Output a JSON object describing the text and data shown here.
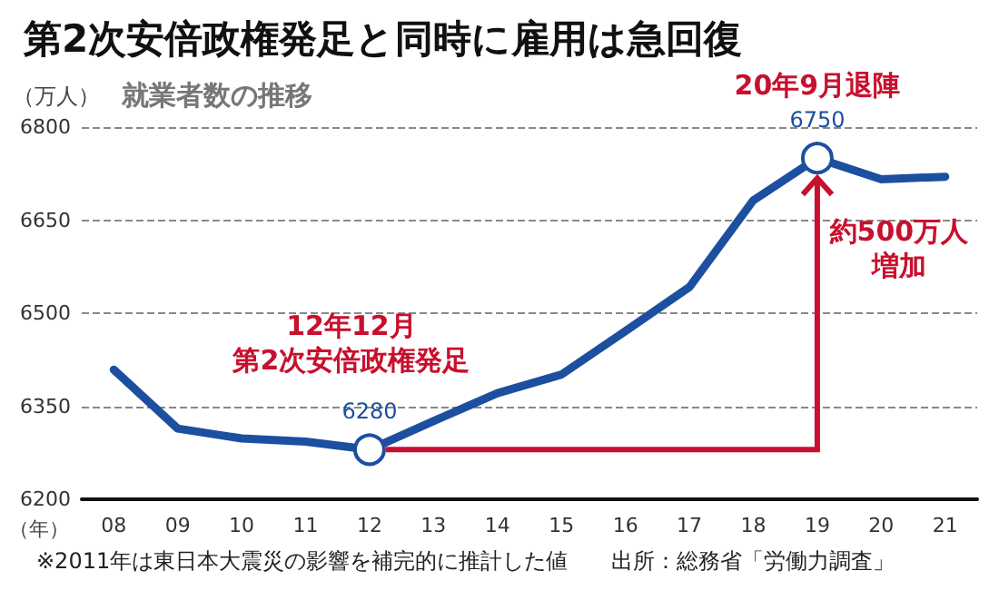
{
  "chart_data": {
    "type": "line",
    "title": "第2次安倍政権発足と同時に雇用は急回復",
    "subtitle": "就業者数の推移",
    "ylabel": "（万人）",
    "xlabel": "（年）",
    "categories": [
      "08",
      "09",
      "10",
      "11",
      "12",
      "13",
      "14",
      "15",
      "16",
      "17",
      "18",
      "19",
      "20",
      "21"
    ],
    "series": [
      {
        "color": "#1c4fa0",
        "values": [
          6409,
          6314,
          6298,
          6293,
          6280,
          6326,
          6371,
          6401,
          6471,
          6542,
          6682,
          6750,
          6716,
          6720
        ],
        "value_labels": [
          null,
          null,
          null,
          null,
          "6280",
          null,
          null,
          null,
          null,
          null,
          null,
          "6750",
          null,
          null
        ]
      }
    ],
    "ylim": [
      6200,
      6800
    ],
    "yticks": [
      6200,
      6350,
      6500,
      6650,
      6800
    ],
    "grid": "y",
    "marker": "none",
    "line_style": "solid",
    "annotations": [
      "12年12月",
      "第2次安倍政権発足",
      {
        "text": "20年9月退陣",
        "x": "19",
        "y": 6750
      },
      "約500万人",
      "増加",
      "※2011年は東日本大震災の影響を補完的に推計した値",
      "出所：総務省「労働力調査」"
    ]
  }
}
